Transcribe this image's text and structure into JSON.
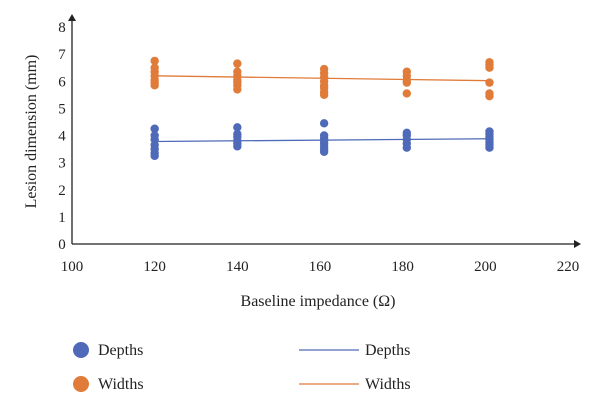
{
  "chart_data": {
    "type": "scatter",
    "title": "",
    "xlabel": "Baseline impedance (Ω)",
    "ylabel": "Lesion dimension (mm)",
    "xlim": [
      100,
      220
    ],
    "ylim": [
      0,
      8
    ],
    "xticks": [
      100,
      120,
      140,
      160,
      180,
      200,
      220
    ],
    "yticks": [
      0,
      1,
      2,
      3,
      4,
      5,
      6,
      7,
      8
    ],
    "grid": false,
    "legend_position": "bottom",
    "series": [
      {
        "name": "Depths",
        "kind": "points",
        "color": "#4f6ab8",
        "points": [
          [
            120,
            3.25
          ],
          [
            120,
            3.35
          ],
          [
            120,
            3.5
          ],
          [
            120,
            3.65
          ],
          [
            120,
            3.85
          ],
          [
            120,
            4.0
          ],
          [
            120,
            4.25
          ],
          [
            140,
            3.6
          ],
          [
            140,
            3.7
          ],
          [
            140,
            3.8
          ],
          [
            140,
            3.95
          ],
          [
            140,
            4.05
          ],
          [
            140,
            4.3
          ],
          [
            161,
            3.4
          ],
          [
            161,
            3.5
          ],
          [
            161,
            3.6
          ],
          [
            161,
            3.7
          ],
          [
            161,
            3.8
          ],
          [
            161,
            3.9
          ],
          [
            161,
            4.0
          ],
          [
            161,
            4.45
          ],
          [
            181,
            3.55
          ],
          [
            181,
            3.7
          ],
          [
            181,
            3.85
          ],
          [
            181,
            4.0
          ],
          [
            181,
            4.1
          ],
          [
            201,
            3.55
          ],
          [
            201,
            3.65
          ],
          [
            201,
            3.75
          ],
          [
            201,
            3.85
          ],
          [
            201,
            3.95
          ],
          [
            201,
            4.05
          ],
          [
            201,
            4.15
          ]
        ]
      },
      {
        "name": "Widths",
        "kind": "points",
        "color": "#e07b39",
        "points": [
          [
            120,
            5.85
          ],
          [
            120,
            5.95
          ],
          [
            120,
            6.05
          ],
          [
            120,
            6.2
          ],
          [
            120,
            6.35
          ],
          [
            120,
            6.5
          ],
          [
            120,
            6.75
          ],
          [
            140,
            5.7
          ],
          [
            140,
            5.85
          ],
          [
            140,
            5.95
          ],
          [
            140,
            6.05
          ],
          [
            140,
            6.2
          ],
          [
            140,
            6.35
          ],
          [
            140,
            6.65
          ],
          [
            161,
            5.5
          ],
          [
            161,
            5.6
          ],
          [
            161,
            5.75
          ],
          [
            161,
            5.85
          ],
          [
            161,
            6.0
          ],
          [
            161,
            6.15
          ],
          [
            161,
            6.3
          ],
          [
            161,
            6.45
          ],
          [
            181,
            5.55
          ],
          [
            181,
            5.95
          ],
          [
            181,
            6.05
          ],
          [
            181,
            6.2
          ],
          [
            181,
            6.35
          ],
          [
            201,
            5.45
          ],
          [
            201,
            5.55
          ],
          [
            201,
            5.95
          ],
          [
            201,
            6.5
          ],
          [
            201,
            6.6
          ],
          [
            201,
            6.7
          ]
        ]
      },
      {
        "name": "Depths",
        "kind": "trendline",
        "color": "#4f6ab8",
        "points": [
          [
            120,
            3.78
          ],
          [
            201,
            3.88
          ]
        ]
      },
      {
        "name": "Widths",
        "kind": "trendline",
        "color": "#e07b39",
        "points": [
          [
            120,
            6.2
          ],
          [
            201,
            6.02
          ]
        ]
      }
    ]
  }
}
